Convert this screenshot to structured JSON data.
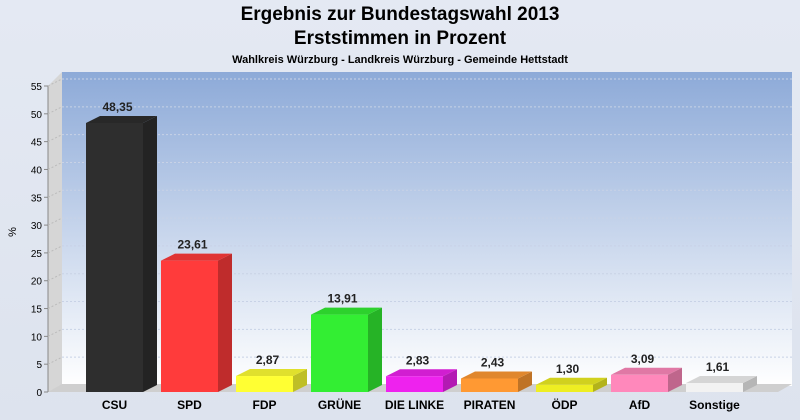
{
  "chart_data": {
    "type": "bar",
    "title": "Ergebnis zur Bundestagswahl 2013",
    "title2": "Erststimmen in Prozent",
    "subtitle": "Wahlkreis Würzburg - Landkreis Würzburg - Gemeinde Hettstadt",
    "ylabel": "%",
    "ylim": [
      0,
      55
    ],
    "yticks": [
      "0",
      "5",
      "10",
      "15",
      "20",
      "25",
      "30",
      "35",
      "40",
      "45",
      "50",
      "55"
    ],
    "categories": [
      "CSU",
      "SPD",
      "FDP",
      "GRÜNE",
      "DIE LINKE",
      "PIRATEN",
      "ÖDP",
      "AfD",
      "Sonstige"
    ],
    "values": [
      48.35,
      23.61,
      2.87,
      13.91,
      2.83,
      2.43,
      1.3,
      3.09,
      1.61
    ],
    "value_labels": [
      "48,35",
      "23,61",
      "2,87",
      "13,91",
      "2,83",
      "2,43",
      "1,30",
      "3,09",
      "1,61"
    ],
    "colors": [
      "#2e2e2e",
      "#ff3b3b",
      "#ffff33",
      "#33ee33",
      "#ee22ee",
      "#ff9933",
      "#eeee22",
      "#ff88bb",
      "#f2f2f2"
    ]
  }
}
